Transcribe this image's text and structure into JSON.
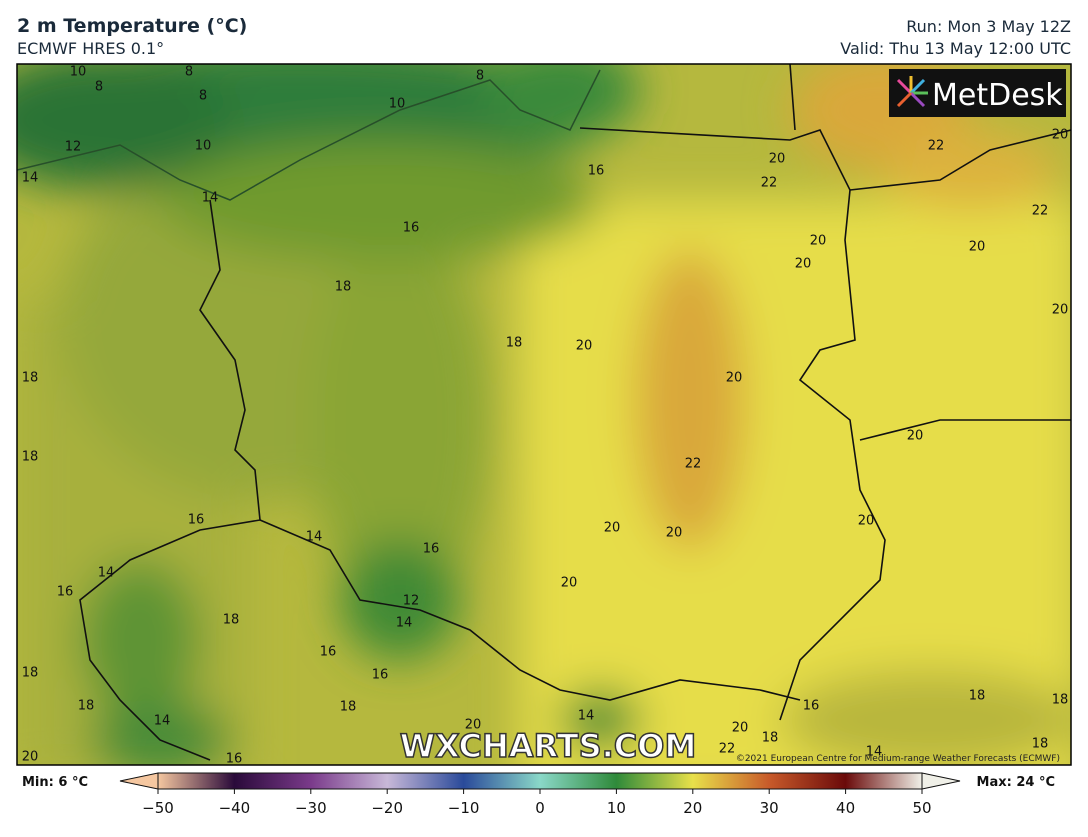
{
  "header": {
    "title": "2 m Temperature (°C)",
    "subtitle": "ECMWF HRES 0.1°",
    "run": "Run: Mon 3 May 12Z",
    "valid": "Valid: Thu 13 May 12:00 UTC"
  },
  "map": {
    "logo": "MetDesk",
    "watermark": "WXCHARTS.COM",
    "copyright": "©2021 European Centre for Medium-range Weather Forecasts (ECMWF)",
    "contour_labels": [
      10,
      8,
      8,
      8,
      8,
      10,
      10,
      12,
      14,
      14,
      16,
      16,
      18,
      18,
      20,
      20,
      22,
      22,
      22,
      20,
      20,
      20,
      20,
      20,
      20,
      20,
      22,
      18,
      18,
      16,
      14,
      16,
      14,
      16,
      12,
      14,
      18,
      20,
      20,
      20,
      20,
      16,
      16,
      18,
      18,
      18,
      14,
      14,
      20,
      20,
      18,
      22,
      16,
      18,
      18,
      14,
      18,
      16,
      20
    ]
  },
  "colorbar": {
    "min_label": "Min: 6 °C",
    "max_label": "Max: 24 °C",
    "ticks": [
      {
        "value": -50,
        "label": "−50"
      },
      {
        "value": -40,
        "label": "−40"
      },
      {
        "value": -30,
        "label": "−30"
      },
      {
        "value": -20,
        "label": "−20"
      },
      {
        "value": -10,
        "label": "−10"
      },
      0,
      10,
      20,
      30,
      40,
      50
    ]
  }
}
